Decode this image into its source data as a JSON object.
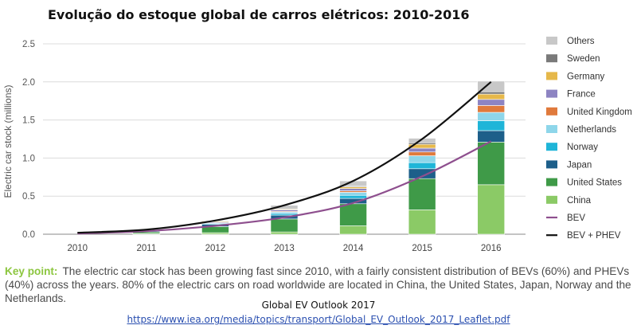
{
  "title": "Evolução do estoque global de carros elétricos: 2010-2016",
  "key_point_label": "Key point:",
  "key_point_text": "The electric car stock has been growing fast since 2010, with a fairly consistent distribution of BEVs (60%) and PHEVs (40%) across the years. 80% of the electric cars on road worldwide are located in China, the United States, Japan, Norway and the Netherlands.",
  "source": "Global EV Outlook 2017",
  "link": "https://www.iea.org/media/topics/transport/Global_EV_Outlook_2017_Leaflet.pdf",
  "colors": {
    "China": "#8bca66",
    "United States": "#3f9a48",
    "Japan": "#1d5f8a",
    "Norway": "#1fb5d8",
    "Netherlands": "#8ed6ea",
    "United Kingdom": "#e07a3c",
    "France": "#8d84c2",
    "Germany": "#e6b84a",
    "Sweden": "#7a7a7a",
    "Others": "#c8c8c8",
    "BEV": "#8e4f8e",
    "BEV + PHEV": "#111111"
  },
  "chart_data": {
    "type": "bar",
    "stacked": true,
    "ylabel": "Electric car stock (millions)",
    "xlabel": "",
    "ylim": [
      0,
      2.5
    ],
    "yticks": [
      "0.0",
      "0.5",
      "1.0",
      "1.5",
      "2.0",
      "2.5"
    ],
    "categories": [
      "2010",
      "2011",
      "2012",
      "2013",
      "2014",
      "2015",
      "2016"
    ],
    "grid": true,
    "legend_position": "right",
    "series": [
      {
        "name": "China",
        "values": [
          0.0,
          0.01,
          0.02,
          0.03,
          0.11,
          0.32,
          0.65
        ]
      },
      {
        "name": "United States",
        "values": [
          0.0,
          0.02,
          0.08,
          0.17,
          0.29,
          0.41,
          0.56
        ]
      },
      {
        "name": "Japan",
        "values": [
          0.0,
          0.01,
          0.03,
          0.05,
          0.07,
          0.13,
          0.15
        ]
      },
      {
        "name": "Norway",
        "values": [
          0.0,
          0.0,
          0.01,
          0.02,
          0.04,
          0.08,
          0.13
        ]
      },
      {
        "name": "Netherlands",
        "values": [
          0.0,
          0.0,
          0.01,
          0.02,
          0.04,
          0.09,
          0.11
        ]
      },
      {
        "name": "United Kingdom",
        "values": [
          0.0,
          0.0,
          0.0,
          0.01,
          0.02,
          0.05,
          0.09
        ]
      },
      {
        "name": "France",
        "values": [
          0.0,
          0.0,
          0.01,
          0.02,
          0.03,
          0.05,
          0.08
        ]
      },
      {
        "name": "Germany",
        "values": [
          0.0,
          0.0,
          0.01,
          0.01,
          0.02,
          0.05,
          0.07
        ]
      },
      {
        "name": "Sweden",
        "values": [
          0.0,
          0.0,
          0.0,
          0.0,
          0.01,
          0.02,
          0.03
        ]
      },
      {
        "name": "Others",
        "values": [
          0.0,
          0.01,
          0.01,
          0.05,
          0.07,
          0.06,
          0.14
        ]
      }
    ],
    "lines": [
      {
        "name": "BEV",
        "values": [
          0.01,
          0.04,
          0.11,
          0.22,
          0.41,
          0.76,
          1.22
        ]
      },
      {
        "name": "BEV + PHEV",
        "values": [
          0.02,
          0.06,
          0.18,
          0.38,
          0.7,
          1.25,
          2.0
        ]
      }
    ]
  }
}
